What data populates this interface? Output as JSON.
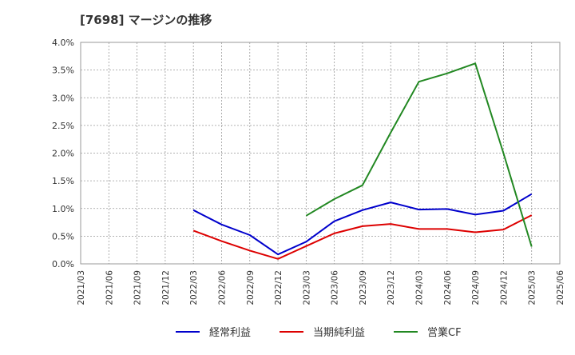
{
  "chart_data": {
    "type": "line",
    "title": "[7698]  マージンの推移",
    "xlabel": "",
    "ylabel": "",
    "x": [
      "2021/03",
      "2021/06",
      "2021/09",
      "2021/12",
      "2022/03",
      "2022/06",
      "2022/09",
      "2022/12",
      "2023/03",
      "2023/06",
      "2023/09",
      "2023/12",
      "2024/03",
      "2024/06",
      "2024/09",
      "2024/12",
      "2025/03",
      "2025/06"
    ],
    "ylim": [
      0,
      4.0
    ],
    "yticks": [
      0.0,
      0.5,
      1.0,
      1.5,
      2.0,
      2.5,
      3.0,
      3.5,
      4.0
    ],
    "ytick_labels": [
      "0.0%",
      "0.5%",
      "1.0%",
      "1.5%",
      "2.0%",
      "2.5%",
      "3.0%",
      "3.5%",
      "4.0%"
    ],
    "grid": true,
    "legend_position": "bottom",
    "series": [
      {
        "name": "経常利益",
        "color": "#0000cc",
        "values": [
          null,
          null,
          null,
          null,
          0.97,
          0.71,
          0.52,
          0.17,
          0.4,
          0.77,
          0.97,
          1.11,
          0.98,
          0.99,
          0.89,
          0.96,
          1.26,
          null
        ]
      },
      {
        "name": "当期純利益",
        "color": "#dd0000",
        "values": [
          null,
          null,
          null,
          null,
          0.6,
          0.41,
          0.24,
          0.09,
          0.32,
          0.55,
          0.68,
          0.72,
          0.63,
          0.63,
          0.57,
          0.62,
          0.88,
          null
        ]
      },
      {
        "name": "営業CF",
        "color": "#228822",
        "values": [
          null,
          null,
          null,
          null,
          null,
          null,
          null,
          null,
          0.87,
          1.17,
          1.42,
          2.37,
          3.29,
          3.44,
          3.62,
          2.0,
          0.31,
          null
        ]
      }
    ]
  }
}
